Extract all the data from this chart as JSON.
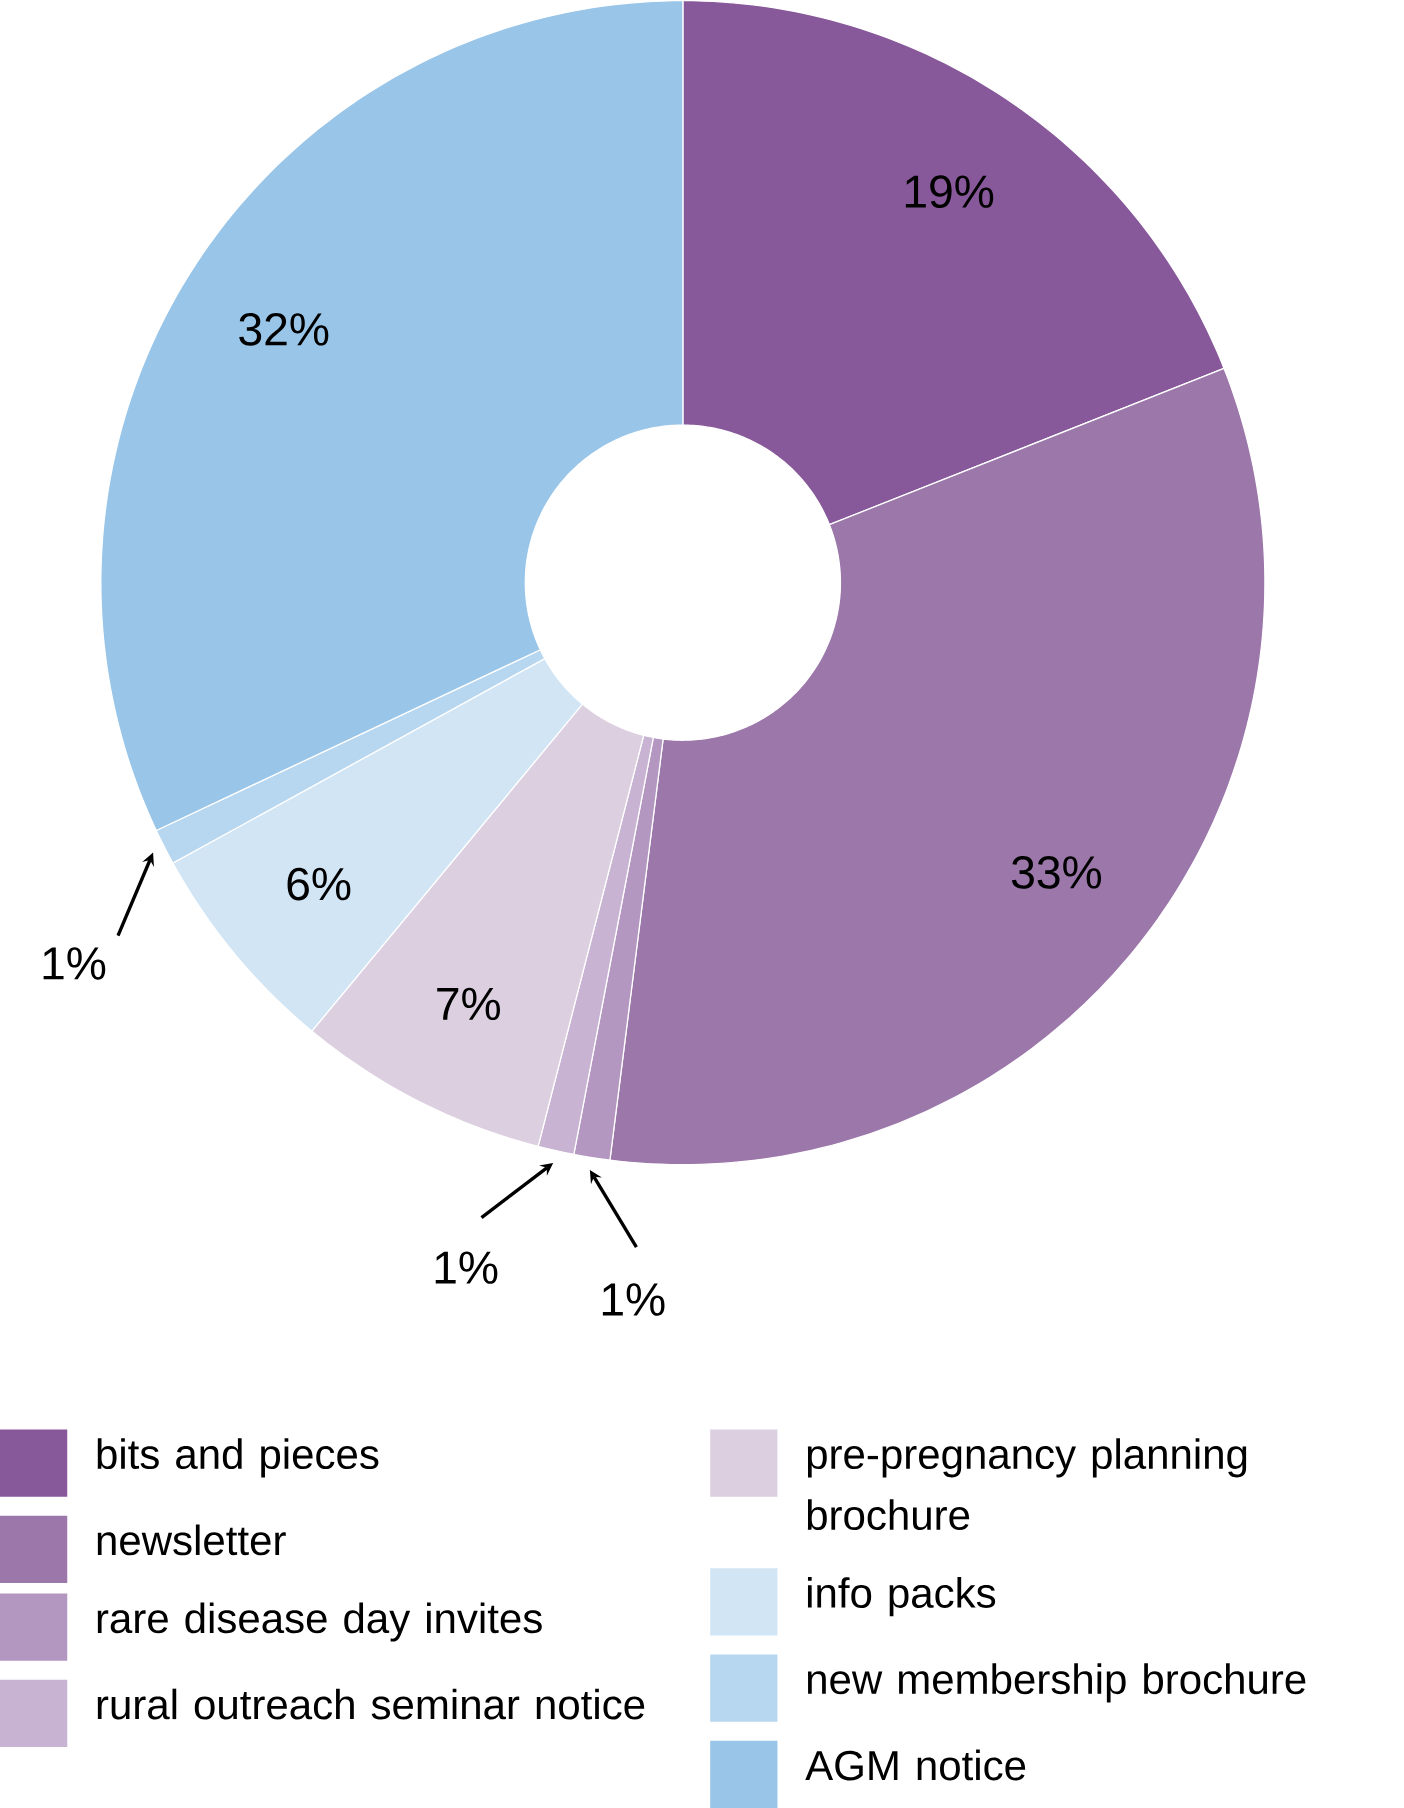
{
  "chart_data": {
    "type": "donut",
    "categories": [
      "bits and pieces",
      "newsletter",
      "rare disease day invites",
      "rural outreach seminar notice",
      "pre-pregnancy planning brochure",
      "info packs",
      "new membership brochure",
      "AGM notice"
    ],
    "values": [
      19,
      33,
      1,
      1,
      7,
      6,
      1,
      32
    ],
    "value_labels": [
      "19%",
      "33%",
      "1%",
      "1%",
      "7%",
      "6%",
      "1%",
      "32%"
    ],
    "colors": [
      "#87589a",
      "#9b77aa",
      "#b497c0",
      "#c8b3d3",
      "#dccfe0",
      "#d2e5f5",
      "#b7d6ef",
      "#98c5e8"
    ],
    "legend": "bottom"
  }
}
